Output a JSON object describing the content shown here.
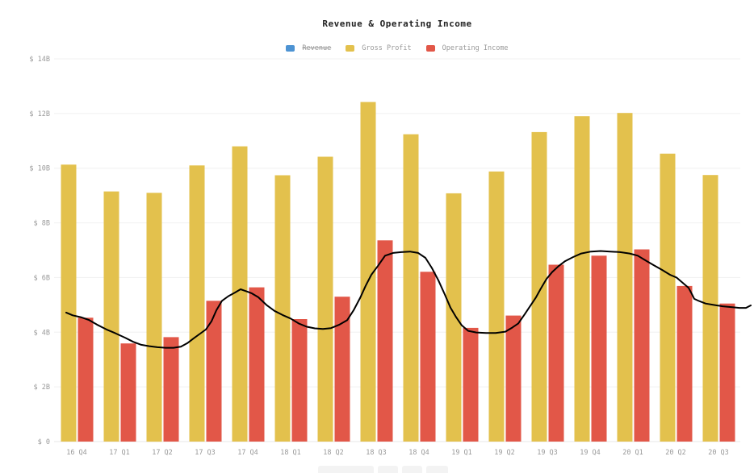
{
  "chart_data": {
    "type": "bar",
    "title": "Revenue & Operating Income",
    "categories": [
      "16 Q4",
      "17 Q1",
      "17 Q2",
      "17 Q3",
      "17 Q4",
      "18 Q1",
      "18 Q2",
      "18 Q3",
      "18 Q4",
      "19 Q1",
      "19 Q2",
      "19 Q3",
      "19 Q4",
      "20 Q1",
      "20 Q2",
      "20 Q3"
    ],
    "unit": "USD billions",
    "ylim": [
      0,
      14
    ],
    "grid": true,
    "legend_position": "top-center",
    "y_ticks": [
      {
        "label": "$ 0",
        "value": 0
      },
      {
        "label": "$ 2B",
        "value": 2
      },
      {
        "label": "$ 4B",
        "value": 4
      },
      {
        "label": "$ 6B",
        "value": 6
      },
      {
        "label": "$ 8B",
        "value": 8
      },
      {
        "label": "$ 10B",
        "value": 10
      },
      {
        "label": "$ 12B",
        "value": 12
      },
      {
        "label": "$ 14B",
        "value": 14
      }
    ],
    "series": [
      {
        "name": "Revenue",
        "color": "#4d93d3",
        "hidden": true,
        "values": null
      },
      {
        "name": "Gross Profit",
        "color": "#e3c14d",
        "hidden": false,
        "values": [
          10.13,
          9.15,
          9.1,
          10.1,
          10.8,
          9.74,
          10.42,
          12.42,
          11.24,
          9.08,
          9.88,
          11.32,
          11.9,
          12.02,
          10.53,
          9.75
        ]
      },
      {
        "name": "Operating Income",
        "color": "#e25748",
        "hidden": false,
        "values": [
          4.53,
          3.59,
          3.82,
          5.15,
          5.64,
          4.48,
          5.3,
          7.36,
          6.21,
          4.16,
          4.61,
          6.47,
          6.8,
          7.03,
          5.69,
          5.05
        ]
      }
    ],
    "overlay_line": {
      "name": "unlabeled-black-line",
      "color": "#000000",
      "points_x_value": [
        [
          82,
          4.72
        ],
        [
          90,
          4.62
        ],
        [
          100,
          4.55
        ],
        [
          110,
          4.45
        ],
        [
          120,
          4.28
        ],
        [
          132,
          4.1
        ],
        [
          143,
          3.96
        ],
        [
          155,
          3.8
        ],
        [
          165,
          3.65
        ],
        [
          175,
          3.54
        ],
        [
          185,
          3.49
        ],
        [
          195,
          3.45
        ],
        [
          205,
          3.43
        ],
        [
          215,
          3.43
        ],
        [
          224,
          3.47
        ],
        [
          232,
          3.6
        ],
        [
          240,
          3.78
        ],
        [
          248,
          3.95
        ],
        [
          255,
          4.1
        ],
        [
          262,
          4.4
        ],
        [
          268,
          4.8
        ],
        [
          275,
          5.15
        ],
        [
          283,
          5.32
        ],
        [
          291,
          5.45
        ],
        [
          298,
          5.57
        ],
        [
          305,
          5.5
        ],
        [
          312,
          5.42
        ],
        [
          320,
          5.28
        ],
        [
          330,
          5.0
        ],
        [
          340,
          4.78
        ],
        [
          350,
          4.63
        ],
        [
          360,
          4.5
        ],
        [
          370,
          4.32
        ],
        [
          380,
          4.2
        ],
        [
          390,
          4.14
        ],
        [
          400,
          4.12
        ],
        [
          410,
          4.15
        ],
        [
          420,
          4.27
        ],
        [
          430,
          4.44
        ],
        [
          438,
          4.8
        ],
        [
          446,
          5.25
        ],
        [
          453,
          5.7
        ],
        [
          460,
          6.1
        ],
        [
          468,
          6.42
        ],
        [
          477,
          6.8
        ],
        [
          487,
          6.9
        ],
        [
          497,
          6.93
        ],
        [
          508,
          6.95
        ],
        [
          518,
          6.9
        ],
        [
          527,
          6.72
        ],
        [
          535,
          6.35
        ],
        [
          543,
          5.9
        ],
        [
          551,
          5.38
        ],
        [
          558,
          4.9
        ],
        [
          565,
          4.55
        ],
        [
          572,
          4.25
        ],
        [
          580,
          4.05
        ],
        [
          590,
          3.99
        ],
        [
          602,
          3.97
        ],
        [
          614,
          3.97
        ],
        [
          626,
          4.02
        ],
        [
          634,
          4.16
        ],
        [
          642,
          4.32
        ],
        [
          650,
          4.66
        ],
        [
          657,
          4.97
        ],
        [
          664,
          5.28
        ],
        [
          670,
          5.6
        ],
        [
          677,
          5.95
        ],
        [
          684,
          6.2
        ],
        [
          692,
          6.42
        ],
        [
          700,
          6.6
        ],
        [
          710,
          6.75
        ],
        [
          720,
          6.88
        ],
        [
          732,
          6.95
        ],
        [
          744,
          6.97
        ],
        [
          756,
          6.95
        ],
        [
          768,
          6.93
        ],
        [
          780,
          6.88
        ],
        [
          790,
          6.8
        ],
        [
          800,
          6.62
        ],
        [
          810,
          6.45
        ],
        [
          820,
          6.28
        ],
        [
          830,
          6.1
        ],
        [
          838,
          6.0
        ],
        [
          846,
          5.8
        ],
        [
          853,
          5.62
        ],
        [
          857,
          5.4
        ],
        [
          860,
          5.22
        ],
        [
          866,
          5.14
        ],
        [
          874,
          5.05
        ],
        [
          884,
          5.0
        ],
        [
          895,
          4.95
        ],
        [
          906,
          4.92
        ],
        [
          916,
          4.89
        ],
        [
          924,
          4.89
        ],
        [
          930,
          4.98
        ]
      ]
    },
    "colors": {
      "revenue": "#4d93d3",
      "gross_profit": "#e3c14d",
      "operating_income": "#e25748",
      "grid": "#f0f0f0",
      "baseline": "#e7e7e7",
      "axis_text": "#999999",
      "title_text": "#222222",
      "overlay_line": "#000000"
    }
  }
}
